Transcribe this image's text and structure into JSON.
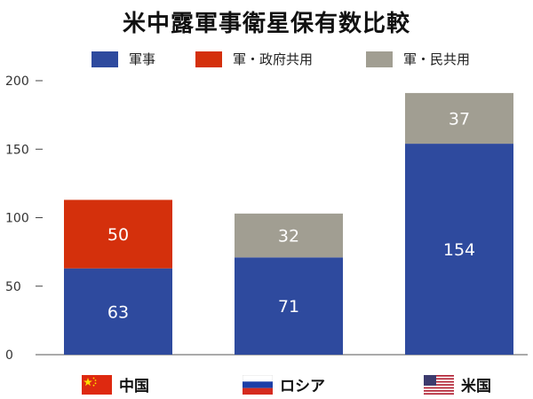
{
  "title": "米中露軍事衛星保有数比較",
  "colors": {
    "military": "#2e4a9e",
    "military_gov": "#d4300c",
    "military_civil": "#a19e92"
  },
  "legend": [
    {
      "label": "軍事",
      "color": "#2e4a9e"
    },
    {
      "label": "軍・政府共用",
      "color": "#d4300c"
    },
    {
      "label": "軍・民共用",
      "color": "#a19e92"
    }
  ],
  "countries": [
    {
      "label": "中国",
      "flag": "china-flag-icon"
    },
    {
      "label": "ロシア",
      "flag": "russia-flag-icon"
    },
    {
      "label": "米国",
      "flag": "usa-flag-icon"
    }
  ],
  "chart_data": {
    "type": "bar",
    "stacked": true,
    "categories": [
      "中国",
      "ロシア",
      "米国"
    ],
    "series": [
      {
        "name": "軍事",
        "values": [
          63,
          71,
          154
        ],
        "color": "#2e4a9e"
      },
      {
        "name": "軍・政府共用",
        "values": [
          50,
          null,
          null
        ],
        "color": "#d4300c"
      },
      {
        "name": "軍・民共用",
        "values": [
          null,
          32,
          37
        ],
        "color": "#a19e92"
      }
    ],
    "yticks": [
      0,
      50,
      100,
      150,
      200
    ],
    "ylim": [
      0,
      200
    ],
    "title": "米中露軍事衛星保有数比較",
    "legend_position": "top",
    "grid": false
  }
}
